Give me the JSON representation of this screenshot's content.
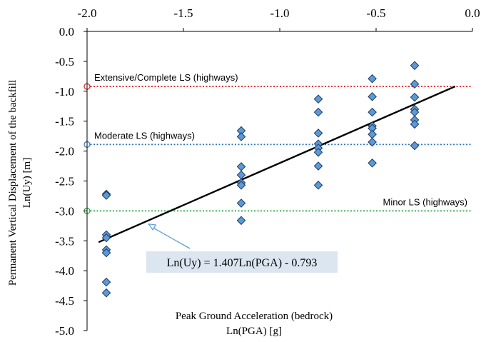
{
  "chart_data": {
    "type": "scatter",
    "xlabel_line1": "Peak Ground Acceleration (bedrock)",
    "xlabel_line2": "Ln(PGA) [g]",
    "ylabel_line1": "Permanent Vertical Displacement of the backfill",
    "ylabel_line2": "Ln(Uy) [m]",
    "xlim": [
      -2.0,
      0.0
    ],
    "ylim": [
      -5.0,
      0.0
    ],
    "x_axis_position": "top",
    "x_ticks": [
      -2.0,
      -1.5,
      -1.0,
      -0.5,
      0.0
    ],
    "x_tick_labels": [
      "-2.0",
      "-1.5",
      "-1.0",
      "-0.5",
      "0.0"
    ],
    "y_ticks": [
      0.0,
      -0.5,
      -1.0,
      -1.5,
      -2.0,
      -2.5,
      -3.0,
      -3.5,
      -4.0,
      -4.5,
      -5.0
    ],
    "y_tick_labels": [
      "0.0",
      "-0.5",
      "-1.0",
      "-1.5",
      "-2.0",
      "-2.5",
      "-3.0",
      "-3.5",
      "-4.0",
      "-4.5",
      "-5.0"
    ],
    "grid": false,
    "marker_color": "#5b9bd5",
    "marker_edge_color": "#1f3864",
    "points": [
      {
        "x": -1.9,
        "y": -2.72
      },
      {
        "x": -1.9,
        "y": -2.74
      },
      {
        "x": -1.9,
        "y": -3.4
      },
      {
        "x": -1.9,
        "y": -3.45
      },
      {
        "x": -1.9,
        "y": -3.65
      },
      {
        "x": -1.9,
        "y": -3.7
      },
      {
        "x": -1.9,
        "y": -4.19
      },
      {
        "x": -1.9,
        "y": -4.37
      },
      {
        "x": -1.2,
        "y": -1.66
      },
      {
        "x": -1.2,
        "y": -1.76
      },
      {
        "x": -1.2,
        "y": -2.26
      },
      {
        "x": -1.2,
        "y": -2.4
      },
      {
        "x": -1.2,
        "y": -2.53
      },
      {
        "x": -1.2,
        "y": -2.57
      },
      {
        "x": -1.2,
        "y": -2.87
      },
      {
        "x": -1.2,
        "y": -3.16
      },
      {
        "x": -0.8,
        "y": -1.13
      },
      {
        "x": -0.8,
        "y": -1.35
      },
      {
        "x": -0.8,
        "y": -1.7
      },
      {
        "x": -0.8,
        "y": -1.88
      },
      {
        "x": -0.8,
        "y": -1.95
      },
      {
        "x": -0.8,
        "y": -2.02
      },
      {
        "x": -0.8,
        "y": -2.25
      },
      {
        "x": -0.8,
        "y": -2.57
      },
      {
        "x": -0.52,
        "y": -0.79
      },
      {
        "x": -0.52,
        "y": -1.09
      },
      {
        "x": -0.52,
        "y": -1.35
      },
      {
        "x": -0.52,
        "y": -1.58
      },
      {
        "x": -0.52,
        "y": -1.62
      },
      {
        "x": -0.52,
        "y": -1.72
      },
      {
        "x": -0.52,
        "y": -1.85
      },
      {
        "x": -0.52,
        "y": -2.2
      },
      {
        "x": -0.3,
        "y": -0.57
      },
      {
        "x": -0.3,
        "y": -0.88
      },
      {
        "x": -0.3,
        "y": -1.1
      },
      {
        "x": -0.3,
        "y": -1.3
      },
      {
        "x": -0.3,
        "y": -1.35
      },
      {
        "x": -0.3,
        "y": -1.48
      },
      {
        "x": -0.3,
        "y": -1.55
      },
      {
        "x": -0.3,
        "y": -1.91
      }
    ],
    "trendline": {
      "slope": 1.407,
      "intercept": -0.793,
      "x_range": [
        -1.94,
        -0.09
      ],
      "color": "#000000",
      "equation_label": "Ln(Uy) = 1.407Ln(PGA) - 0.793",
      "label_background": "#dce6f1",
      "arrow_color": "#5b9bd5",
      "arrow_target": {
        "x": -1.68,
        "y": -3.22
      }
    },
    "thresholds": [
      {
        "name": "Extensive/Complete LS (highways)",
        "y": -0.92,
        "color": "#e02020"
      },
      {
        "name": "Moderate LS (highways)",
        "y": -1.89,
        "color": "#2e75b6"
      },
      {
        "name": "Minor LS (highways)",
        "y": -3.0,
        "color": "#22a63a"
      }
    ]
  }
}
